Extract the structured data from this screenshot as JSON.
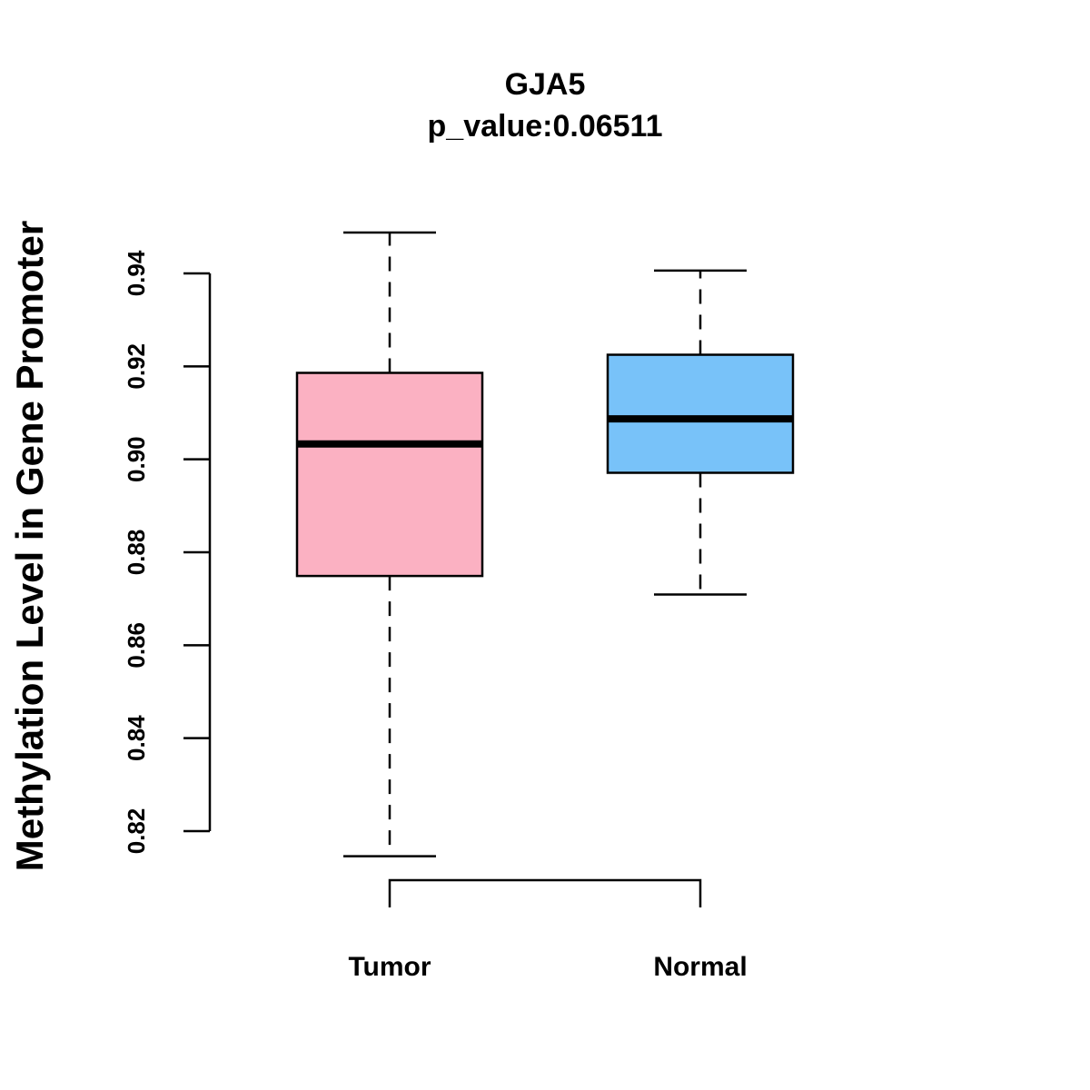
{
  "chart_data": {
    "type": "boxplot",
    "title": "GJA5",
    "subtitle": "p_value:0.06511",
    "xlabel": "",
    "ylabel": "Methylation Level in Gene Promoter",
    "categories": [
      "Tumor",
      "Normal"
    ],
    "ylim": [
      0.82,
      0.94
    ],
    "yticks": [
      0.82,
      0.84,
      0.86,
      0.88,
      0.9,
      0.92,
      0.94
    ],
    "ytick_labels": [
      "0.82",
      "0.84",
      "0.86",
      "0.88",
      "0.90",
      "0.92",
      "0.94"
    ],
    "grid": false,
    "series": [
      {
        "name": "Tumor",
        "color": "#FBB1C2",
        "whisker_low": 0.8146,
        "q1": 0.8749,
        "median": 0.9033,
        "q3": 0.9186,
        "whisker_high": 0.9488
      },
      {
        "name": "Normal",
        "color": "#78C2F9",
        "whisker_low": 0.8709,
        "q1": 0.8971,
        "median": 0.9087,
        "q3": 0.9225,
        "whisker_high": 0.9406
      }
    ],
    "bracket": {
      "from": "Tumor",
      "to": "Normal"
    }
  }
}
